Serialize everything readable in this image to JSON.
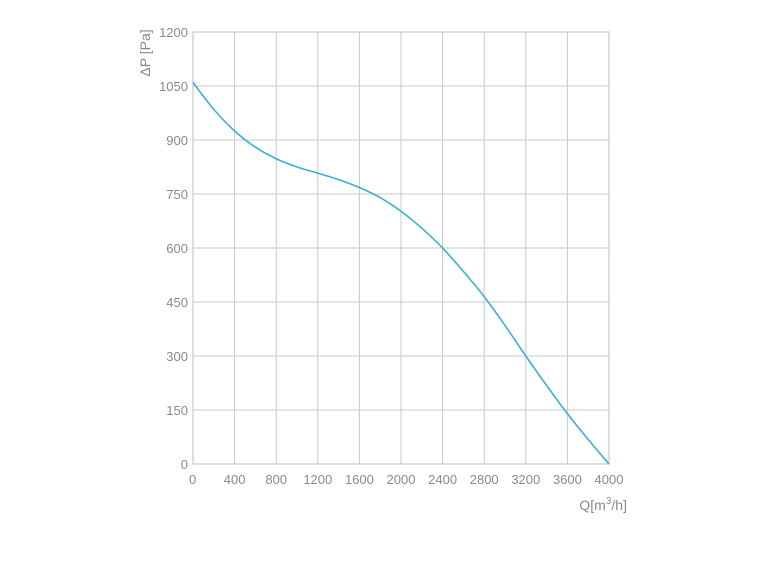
{
  "chart_data": {
    "type": "line",
    "title": "",
    "xlabel": {
      "prefix": "Q[m",
      "superscript": "3",
      "suffix": "/h]"
    },
    "ylabel": "ΔP [Pa]",
    "xlim": [
      0,
      4000
    ],
    "ylim": [
      0,
      1200
    ],
    "xticks": [
      0,
      400,
      800,
      1200,
      1600,
      2000,
      2400,
      2800,
      3200,
      3600,
      4000
    ],
    "yticks": [
      0,
      150,
      300,
      450,
      600,
      750,
      900,
      1050,
      1200
    ],
    "grid": true,
    "series": [
      {
        "color": "#3ab0d4",
        "x": [
          0,
          200,
          400,
          600,
          800,
          1000,
          1200,
          1400,
          1600,
          1800,
          2000,
          2200,
          2400,
          2600,
          2800,
          3000,
          3200,
          3400,
          3600,
          3800,
          4000
        ],
        "y": [
          1060,
          985,
          925,
          880,
          848,
          825,
          808,
          790,
          768,
          740,
          702,
          655,
          600,
          535,
          465,
          385,
          300,
          218,
          140,
          68,
          0
        ]
      }
    ]
  }
}
